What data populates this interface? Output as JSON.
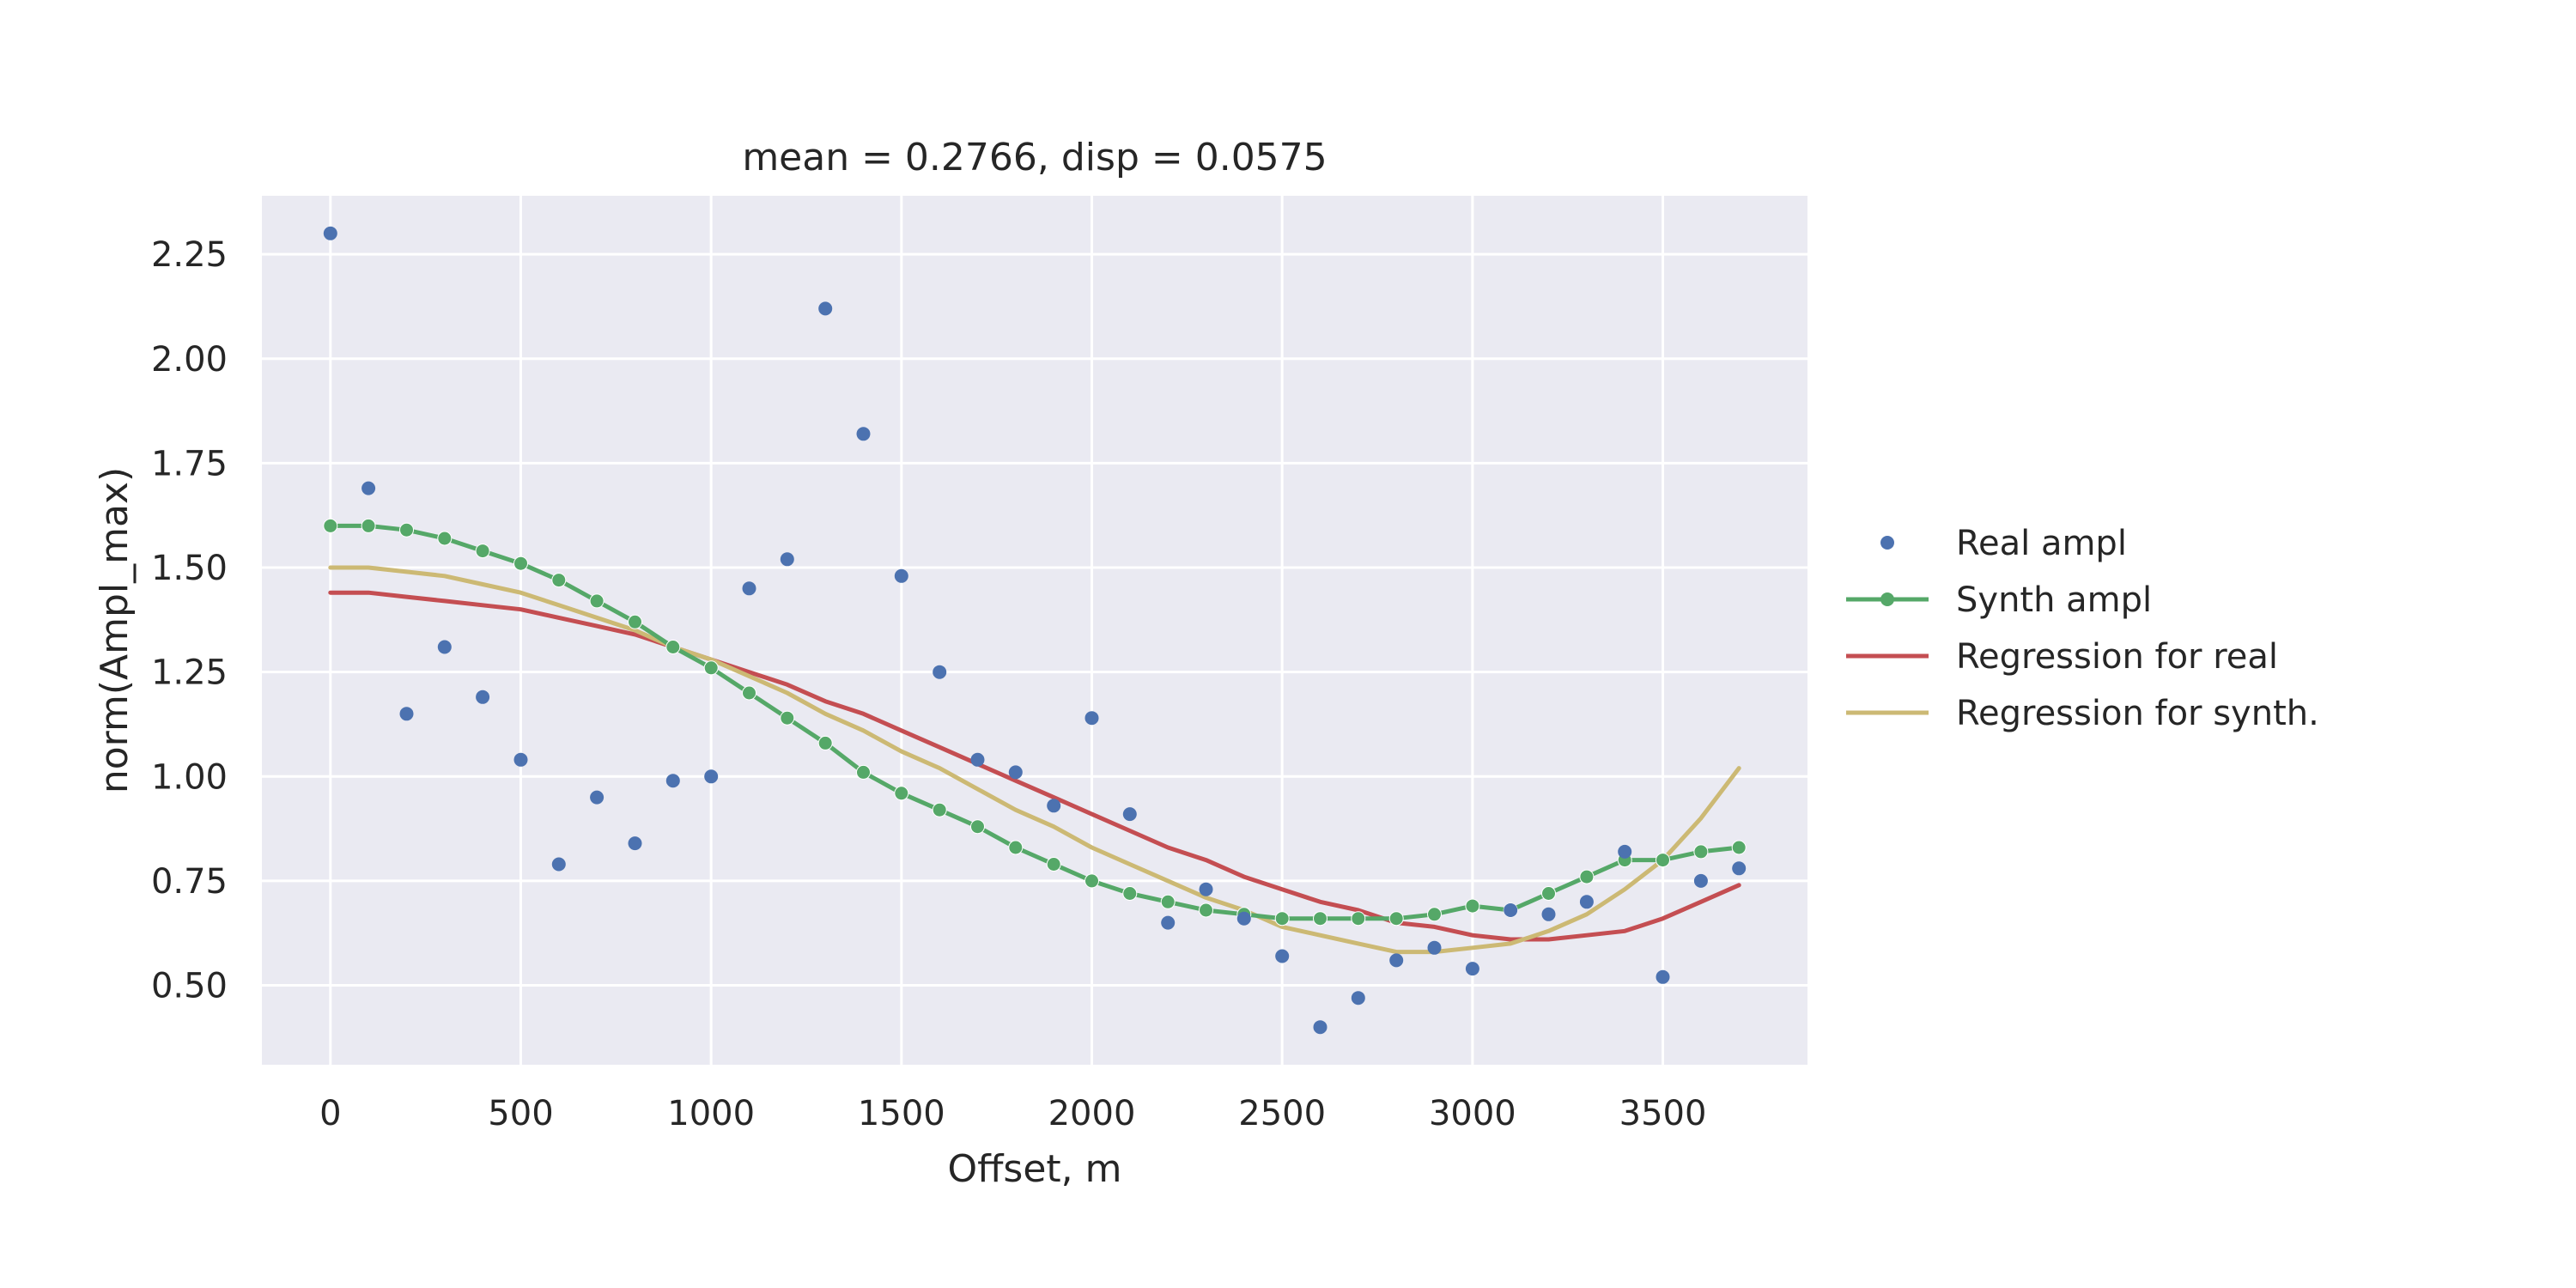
{
  "chart_data": {
    "type": "line",
    "title": "mean = 0.2766, disp = 0.0575",
    "xlabel": "Offset, m",
    "ylabel": "norm(Ampl_max)",
    "xlim": [
      -180,
      3880
    ],
    "ylim": [
      0.31,
      2.39
    ],
    "xticks": [
      0,
      500,
      1000,
      1500,
      2000,
      2500,
      3000,
      3500
    ],
    "yticks": [
      0.5,
      0.75,
      1.0,
      1.25,
      1.5,
      1.75,
      2.0,
      2.25
    ],
    "grid": true,
    "legend_position": "right-outside",
    "series": [
      {
        "name": "Real ampl",
        "style": "markers",
        "color": "#4c72b0",
        "x": [
          0,
          100,
          200,
          300,
          400,
          500,
          600,
          700,
          800,
          900,
          1000,
          1100,
          1200,
          1300,
          1400,
          1500,
          1600,
          1700,
          1800,
          1900,
          2000,
          2100,
          2200,
          2300,
          2400,
          2500,
          2600,
          2700,
          2800,
          2900,
          3000,
          3100,
          3200,
          3300,
          3400,
          3500,
          3600,
          3700
        ],
        "y": [
          2.3,
          1.69,
          1.15,
          1.31,
          1.19,
          1.04,
          0.79,
          0.95,
          0.84,
          0.99,
          1.0,
          1.45,
          1.52,
          2.12,
          1.82,
          1.48,
          1.25,
          1.04,
          1.01,
          0.93,
          1.14,
          0.91,
          0.65,
          0.73,
          0.66,
          0.57,
          0.4,
          0.47,
          0.56,
          0.59,
          0.54,
          0.68,
          0.67,
          0.7,
          0.82,
          0.52,
          0.75,
          0.78
        ]
      },
      {
        "name": "Synth ampl",
        "style": "line-markers",
        "color": "#55a868",
        "x": [
          0,
          100,
          200,
          300,
          400,
          500,
          600,
          700,
          800,
          900,
          1000,
          1100,
          1200,
          1300,
          1400,
          1500,
          1600,
          1700,
          1800,
          1900,
          2000,
          2100,
          2200,
          2300,
          2400,
          2500,
          2600,
          2700,
          2800,
          2900,
          3000,
          3100,
          3200,
          3300,
          3400,
          3500,
          3600,
          3700
        ],
        "y": [
          1.6,
          1.6,
          1.59,
          1.57,
          1.54,
          1.51,
          1.47,
          1.42,
          1.37,
          1.31,
          1.26,
          1.2,
          1.14,
          1.08,
          1.01,
          0.96,
          0.92,
          0.88,
          0.83,
          0.79,
          0.75,
          0.72,
          0.7,
          0.68,
          0.67,
          0.66,
          0.66,
          0.66,
          0.66,
          0.67,
          0.69,
          0.68,
          0.72,
          0.76,
          0.8,
          0.8,
          0.82,
          0.83
        ]
      },
      {
        "name": "Regression for real",
        "style": "line",
        "color": "#c44e52",
        "x": [
          0,
          100,
          200,
          300,
          400,
          500,
          600,
          700,
          800,
          900,
          1000,
          1100,
          1200,
          1300,
          1400,
          1500,
          1600,
          1700,
          1800,
          1900,
          2000,
          2100,
          2200,
          2300,
          2400,
          2500,
          2600,
          2700,
          2800,
          2900,
          3000,
          3100,
          3200,
          3300,
          3400,
          3500,
          3600,
          3700
        ],
        "y": [
          1.44,
          1.44,
          1.43,
          1.42,
          1.41,
          1.4,
          1.38,
          1.36,
          1.34,
          1.31,
          1.28,
          1.25,
          1.22,
          1.18,
          1.15,
          1.11,
          1.07,
          1.03,
          0.99,
          0.95,
          0.91,
          0.87,
          0.83,
          0.8,
          0.76,
          0.73,
          0.7,
          0.68,
          0.65,
          0.64,
          0.62,
          0.61,
          0.61,
          0.62,
          0.63,
          0.66,
          0.7,
          0.74
        ]
      },
      {
        "name": "Regression for synth.",
        "style": "line",
        "color": "#ccb974",
        "x": [
          0,
          100,
          200,
          300,
          400,
          500,
          600,
          700,
          800,
          900,
          1000,
          1100,
          1200,
          1300,
          1400,
          1500,
          1600,
          1700,
          1800,
          1900,
          2000,
          2100,
          2200,
          2300,
          2400,
          2500,
          2600,
          2700,
          2800,
          2900,
          3000,
          3100,
          3200,
          3300,
          3400,
          3500,
          3600,
          3700
        ],
        "y": [
          1.5,
          1.5,
          1.49,
          1.48,
          1.46,
          1.44,
          1.41,
          1.38,
          1.35,
          1.31,
          1.28,
          1.24,
          1.2,
          1.15,
          1.11,
          1.06,
          1.02,
          0.97,
          0.92,
          0.88,
          0.83,
          0.79,
          0.75,
          0.71,
          0.68,
          0.64,
          0.62,
          0.6,
          0.58,
          0.58,
          0.59,
          0.6,
          0.63,
          0.67,
          0.73,
          0.8,
          0.9,
          1.02
        ]
      }
    ]
  }
}
